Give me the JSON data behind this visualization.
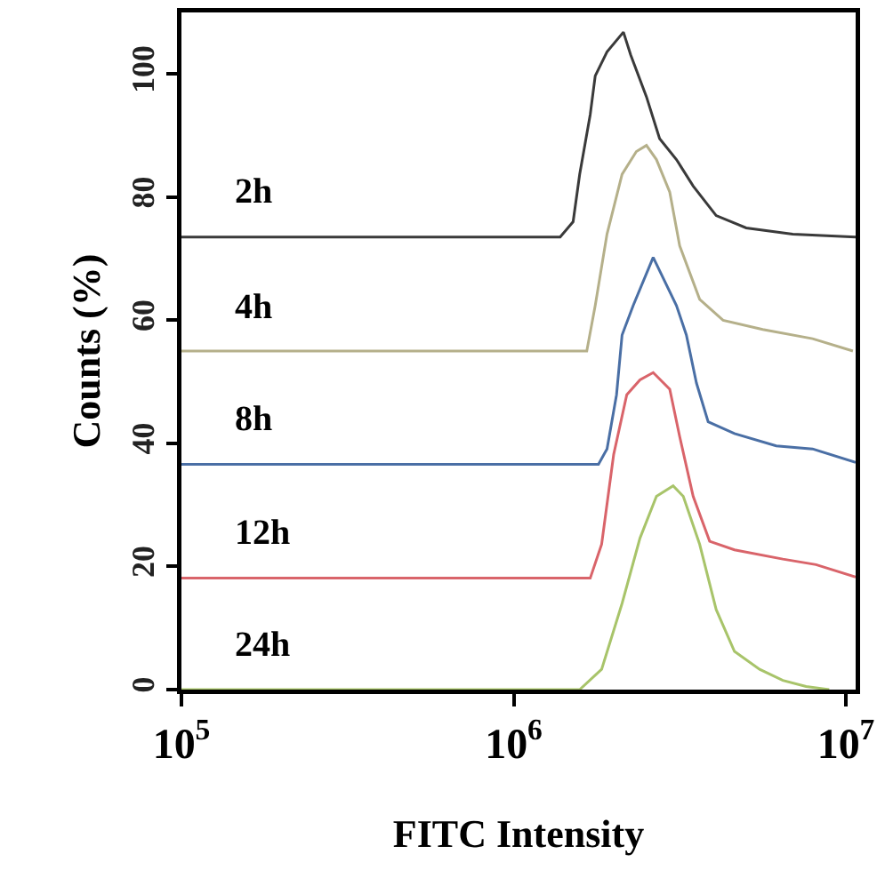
{
  "chart_data": {
    "type": "line",
    "xlabel": "FITC Intensity",
    "ylabel": "Counts (%)",
    "log": "x",
    "xlim": [
      100000,
      10700000
    ],
    "xticks": [
      {
        "value": 100000,
        "label": "10$^{5}$"
      },
      {
        "value": 1000000,
        "label": "10$^{6}$"
      },
      {
        "value": 10000000,
        "label": "10$^{7}$"
      }
    ],
    "ylim": [
      0,
      110
    ],
    "yticks": [
      0,
      20,
      40,
      60,
      80,
      100
    ],
    "grid": false,
    "legend": false,
    "marker": "none",
    "line_style": "solid",
    "series": [
      {
        "name": "2h",
        "color": "#3a3a3a",
        "x": [
          100000,
          1380000,
          1510000,
          1580000,
          1700000,
          1760000,
          1910000,
          2140000,
          2250000,
          2510000,
          2750000,
          3090000,
          3470000,
          4070000,
          5010000,
          6920000,
          10700000
        ],
        "values": [
          73.5,
          73.5,
          76,
          83.7,
          93.4,
          99.7,
          103.6,
          106.8,
          103.1,
          96.3,
          89.5,
          86.1,
          81.8,
          77,
          75,
          74,
          73.5
        ]
      },
      {
        "name": "4h",
        "color": "#b5b08a",
        "x": [
          100000,
          1660000,
          1760000,
          1910000,
          2120000,
          2340000,
          2510000,
          2690000,
          2950000,
          3160000,
          3630000,
          4270000,
          5620000,
          7940000,
          10500000
        ],
        "values": [
          55,
          55,
          62.4,
          74,
          83.7,
          87.4,
          88.4,
          86.1,
          80.8,
          72.1,
          63.4,
          60,
          58.5,
          57,
          55
        ]
      },
      {
        "name": "8h",
        "color": "#4a6fa5",
        "x": [
          100000,
          1800000,
          1910000,
          2040000,
          2120000,
          2290000,
          2630000,
          3090000,
          3310000,
          3550000,
          3850000,
          4620000,
          6170000,
          7940000,
          10700000
        ],
        "values": [
          36.6,
          36.6,
          39.1,
          47.9,
          57.6,
          62.4,
          70.2,
          62.4,
          57.6,
          49.8,
          43.5,
          41.6,
          39.6,
          39.1,
          36.9
        ]
      },
      {
        "name": "12h",
        "color": "#d9646a",
        "x": [
          100000,
          1700000,
          1840000,
          2000000,
          2190000,
          2400000,
          2630000,
          2950000,
          3160000,
          3470000,
          3890000,
          4620000,
          6460000,
          8130000,
          10700000
        ],
        "values": [
          18.1,
          18.1,
          23.6,
          38.2,
          47.9,
          50.3,
          51.5,
          48.8,
          41.1,
          31.4,
          24.1,
          22.7,
          21.2,
          20.3,
          18.3
        ]
      },
      {
        "name": "24h",
        "color": "#a8c46a",
        "x": [
          100000,
          1580000,
          1840000,
          2120000,
          2400000,
          2690000,
          3020000,
          3240000,
          3630000,
          4070000,
          4620000,
          5500000,
          6460000,
          7590000,
          8910000
        ],
        "values": [
          0,
          0,
          3.3,
          14,
          24.6,
          31.4,
          33.1,
          31.4,
          23.6,
          13,
          6.2,
          3.3,
          1.5,
          0.5,
          0
        ]
      }
    ]
  }
}
